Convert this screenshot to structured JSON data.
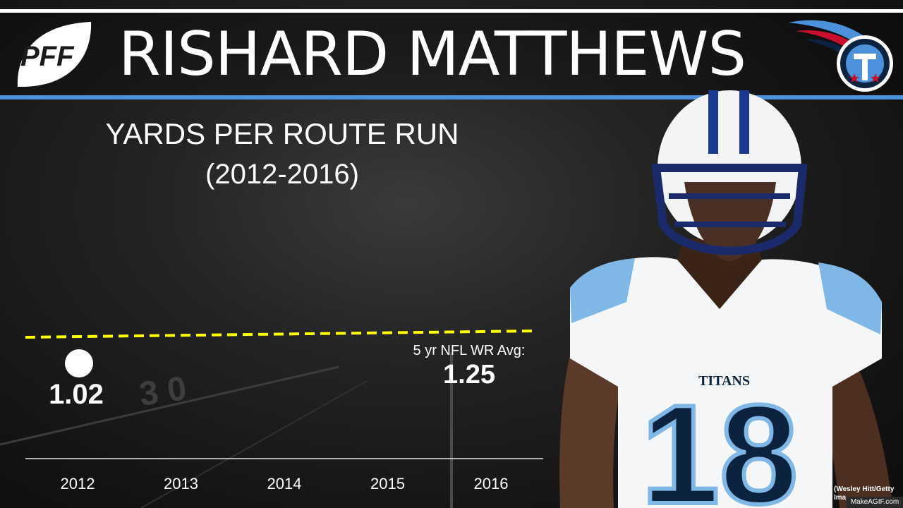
{
  "header": {
    "title": "RISHARD MATTHEWS",
    "logo_text": "PFF",
    "accent_color": "#4b92db"
  },
  "chart_data": {
    "type": "scatter",
    "title": "YARDS PER ROUTE RUN",
    "subtitle": "(2012-2016)",
    "categories": [
      "2012",
      "2013",
      "2014",
      "2015",
      "2016"
    ],
    "series": [
      {
        "values": [
          1.02,
          null,
          null,
          null,
          null
        ]
      }
    ],
    "reference_line": {
      "label": "5 yr NFL WR Avg:",
      "value": 1.25,
      "color": "#ffff00",
      "style": "dashed"
    },
    "data_labels": [
      "1.02"
    ],
    "ylim": [
      0,
      1.5
    ],
    "grid": false
  },
  "credit": "(Wesley Hitt/Getty Ima",
  "watermark": "MakeAGIF.com"
}
